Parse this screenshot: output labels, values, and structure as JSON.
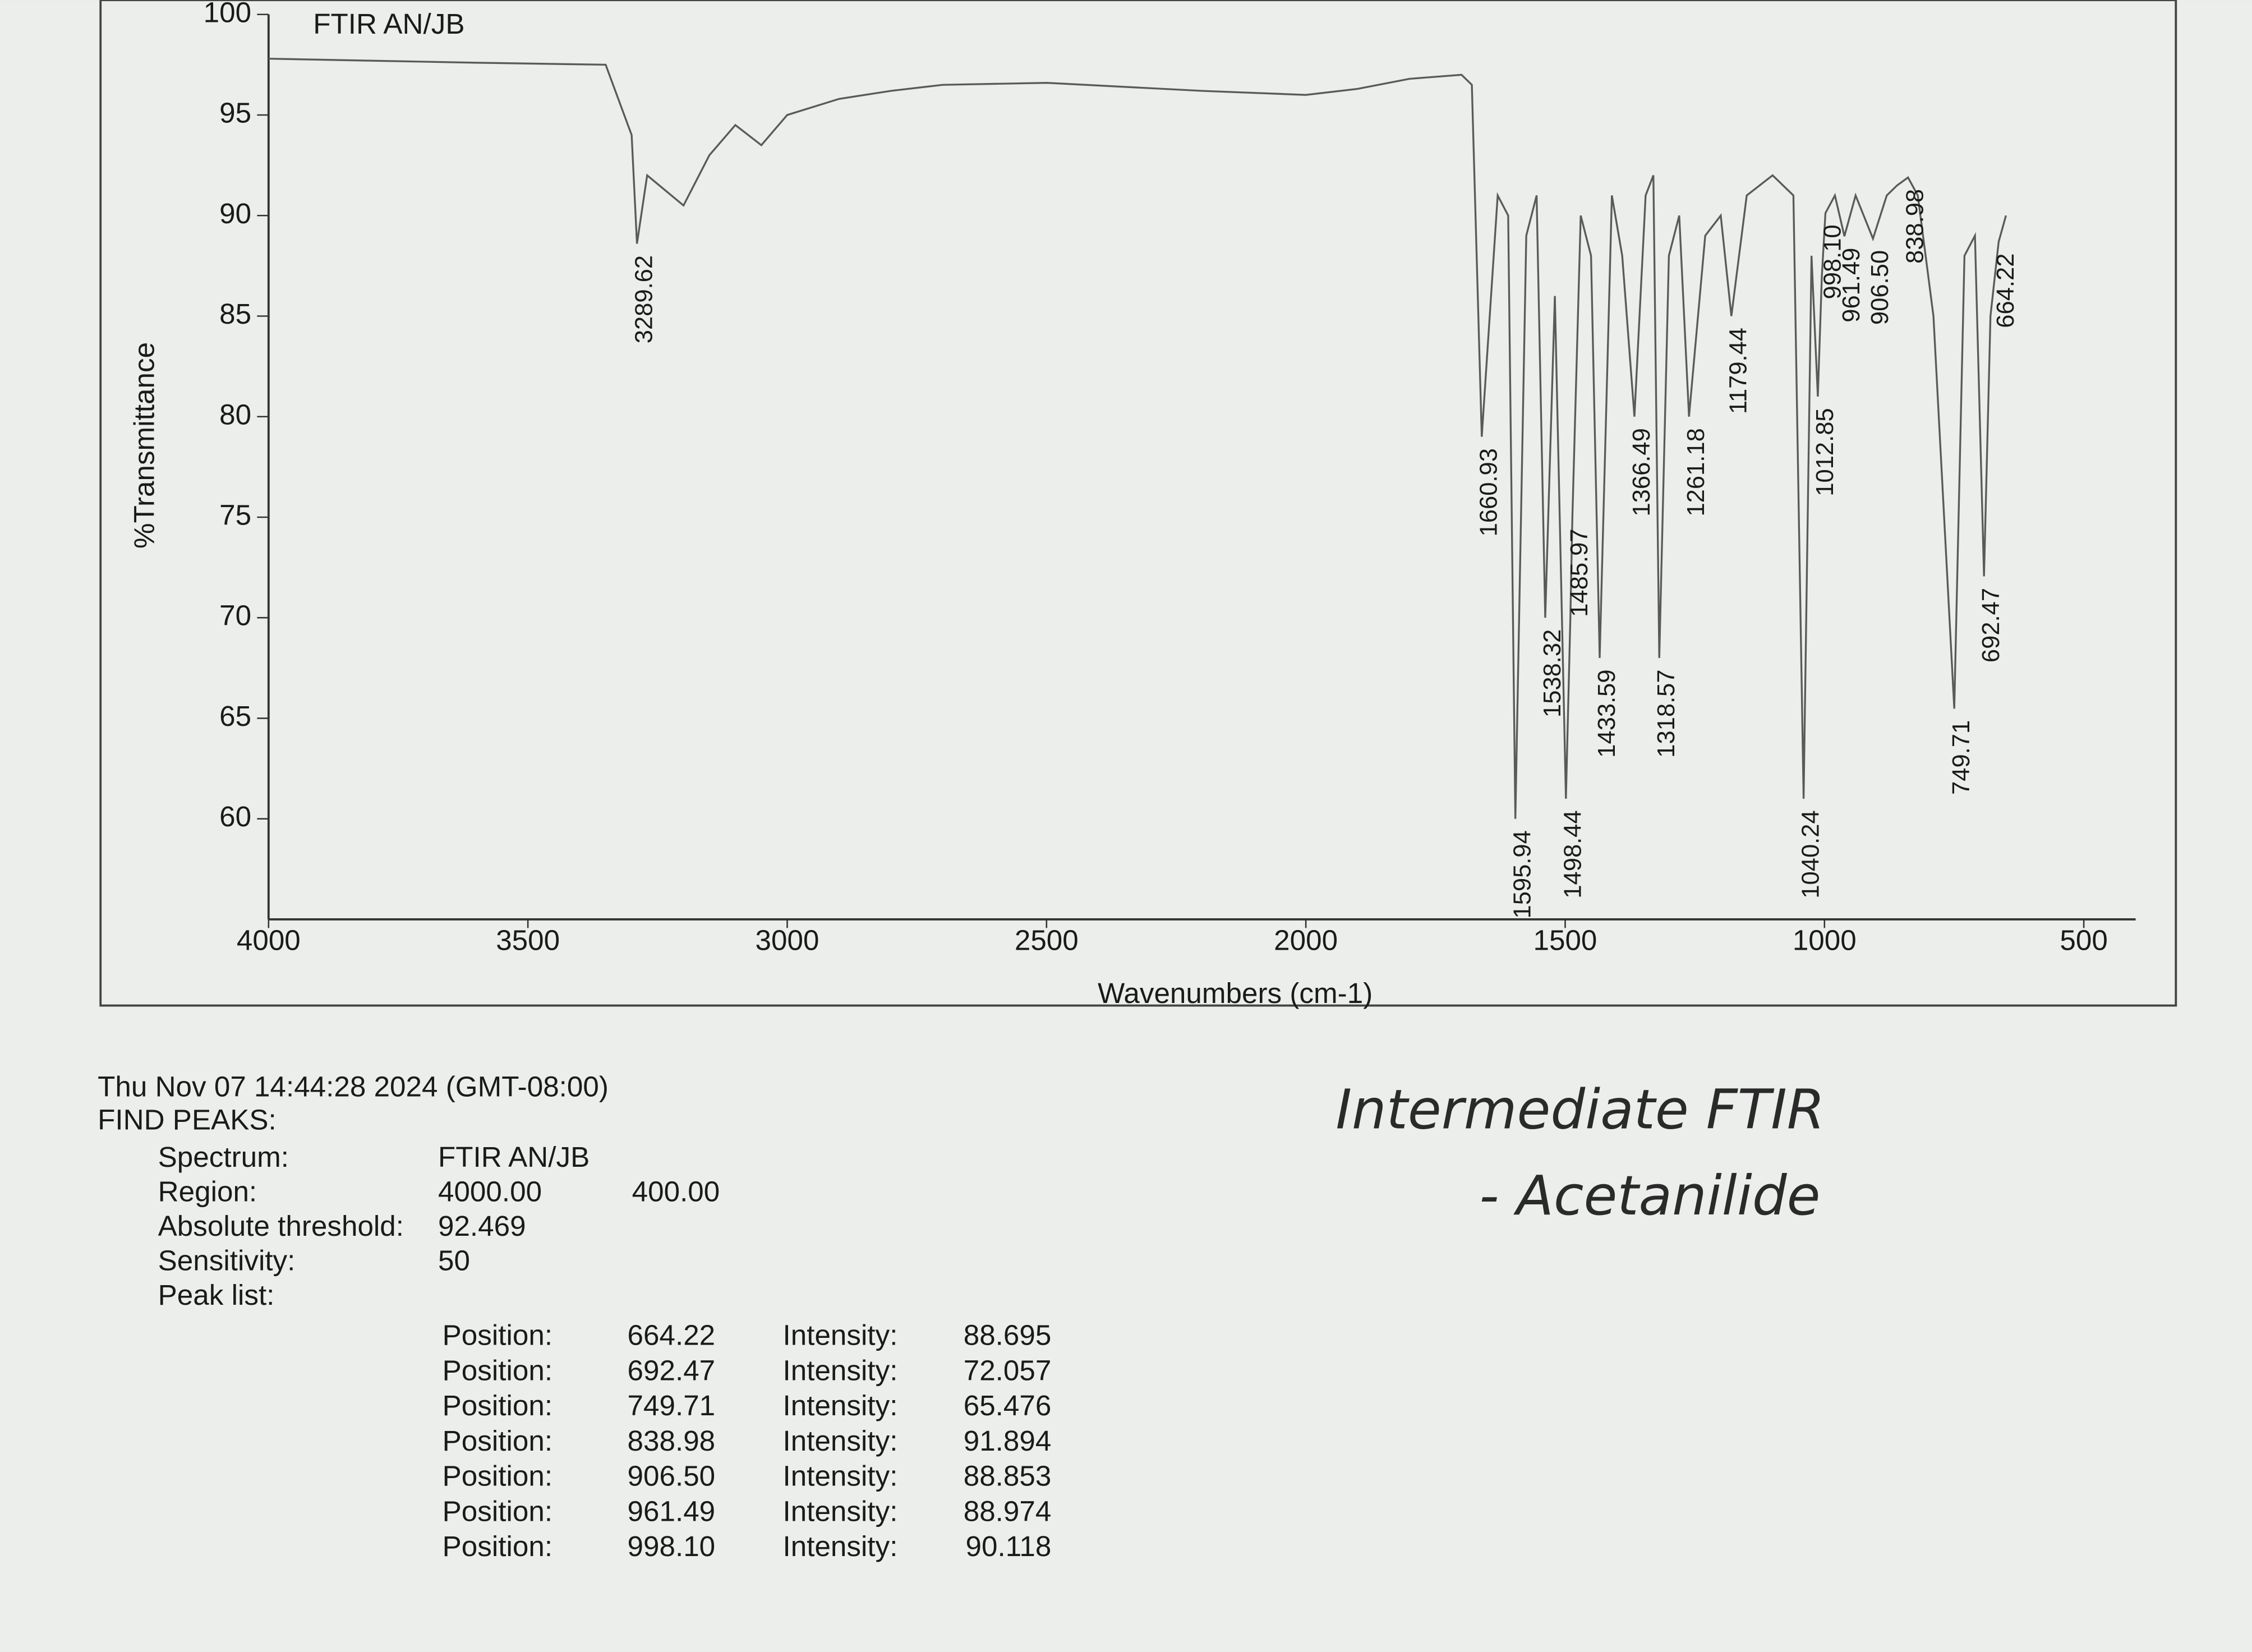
{
  "chart_data": {
    "type": "line",
    "title": "FTIR AN/JB",
    "x_label": "Wavenumbers (cm-1)",
    "y_label": "%Transmittance",
    "xlim": [
      4000,
      400
    ],
    "ylim": [
      55,
      100
    ],
    "xticks": [
      4000,
      3500,
      3000,
      2500,
      2000,
      1500,
      1000,
      500
    ],
    "yticks": [
      60,
      65,
      70,
      75,
      80,
      85,
      90,
      95,
      100
    ],
    "x": [
      4000,
      3600,
      3350,
      3300,
      3289.62,
      3270,
      3200,
      3150,
      3100,
      3050,
      3000,
      2900,
      2800,
      2700,
      2500,
      2200,
      2000,
      1900,
      1800,
      1700,
      1680,
      1660.93,
      1630,
      1610,
      1595.94,
      1575,
      1555,
      1538.32,
      1520,
      1498.44,
      1490,
      1485.97,
      1470,
      1450,
      1433.59,
      1410,
      1390,
      1366.49,
      1345,
      1330,
      1318.57,
      1300,
      1280,
      1261.18,
      1230,
      1200,
      1179.44,
      1150,
      1100,
      1060,
      1040.24,
      1025,
      1012.85,
      1005,
      998.1,
      980,
      961.49,
      940,
      906.5,
      880,
      860,
      838.98,
      820,
      790,
      749.71,
      730,
      710,
      692.47,
      680,
      664.22,
      650
    ],
    "series": [
      {
        "color": "#5a5a5a",
        "values": [
          97.8,
          97.6,
          97.5,
          94,
          88.6,
          92,
          90.5,
          93,
          94.5,
          93.5,
          95,
          95.8,
          96.2,
          96.5,
          96.6,
          96.2,
          96.0,
          96.3,
          96.8,
          97.0,
          96.5,
          79,
          91,
          90,
          60,
          89,
          91,
          70,
          86,
          61,
          70,
          75,
          90,
          88,
          68,
          91,
          88,
          80,
          91,
          92,
          68,
          88,
          90,
          80,
          89,
          90,
          85,
          91,
          92,
          91,
          61,
          88,
          81,
          87,
          90.118,
          91,
          88.974,
          91,
          88.853,
          91,
          91.5,
          91.894,
          91,
          85,
          65.476,
          88,
          89,
          72.057,
          85,
          88.695,
          90
        ]
      }
    ],
    "annotations": [
      {
        "x": 3289.62,
        "label": "3289.62"
      },
      {
        "x": 1660.93,
        "label": "1660.93"
      },
      {
        "x": 1595.94,
        "label": "1595.94"
      },
      {
        "x": 1538.32,
        "label": "1538.32"
      },
      {
        "x": 1498.44,
        "label": "1498.44"
      },
      {
        "x": 1485.97,
        "label": "1485.97"
      },
      {
        "x": 1433.59,
        "label": "1433.59"
      },
      {
        "x": 1366.49,
        "label": "1366.49"
      },
      {
        "x": 1318.57,
        "label": "1318.57"
      },
      {
        "x": 1261.18,
        "label": "1261.18"
      },
      {
        "x": 1179.44,
        "label": "1179.44"
      },
      {
        "x": 1040.24,
        "label": "1040.24"
      },
      {
        "x": 1012.85,
        "label": "1012.85"
      },
      {
        "x": 998.1,
        "label": "998.10"
      },
      {
        "x": 961.49,
        "label": "961.49"
      },
      {
        "x": 906.5,
        "label": "906.50"
      },
      {
        "x": 838.98,
        "label": "838.98"
      },
      {
        "x": 749.71,
        "label": "749.71"
      },
      {
        "x": 692.47,
        "label": "692.47"
      },
      {
        "x": 664.22,
        "label": "664.22"
      }
    ]
  },
  "report": {
    "timestamp": "Thu Nov 07 14:44:28 2024 (GMT-08:00)",
    "heading": "FIND PEAKS:",
    "fields": [
      [
        "Spectrum:",
        "FTIR AN/JB"
      ],
      [
        "Region:",
        "4000.00",
        "400.00"
      ],
      [
        "Absolute threshold:",
        "92.469"
      ],
      [
        "Sensitivity:",
        "50"
      ],
      [
        "Peak list:"
      ]
    ],
    "rows": [
      [
        "Position:",
        "664.22",
        "Intensity:",
        "88.695"
      ],
      [
        "Position:",
        "692.47",
        "Intensity:",
        "72.057"
      ],
      [
        "Position:",
        "749.71",
        "Intensity:",
        "65.476"
      ],
      [
        "Position:",
        "838.98",
        "Intensity:",
        "91.894"
      ],
      [
        "Position:",
        "906.50",
        "Intensity:",
        "88.853"
      ],
      [
        "Position:",
        "961.49",
        "Intensity:",
        "88.974"
      ],
      [
        "Position:",
        "998.10",
        "Intensity:",
        "90.118"
      ]
    ]
  },
  "handwriting": {
    "line1": "Intermediate FTIR",
    "line2": "- Acetanilide"
  }
}
